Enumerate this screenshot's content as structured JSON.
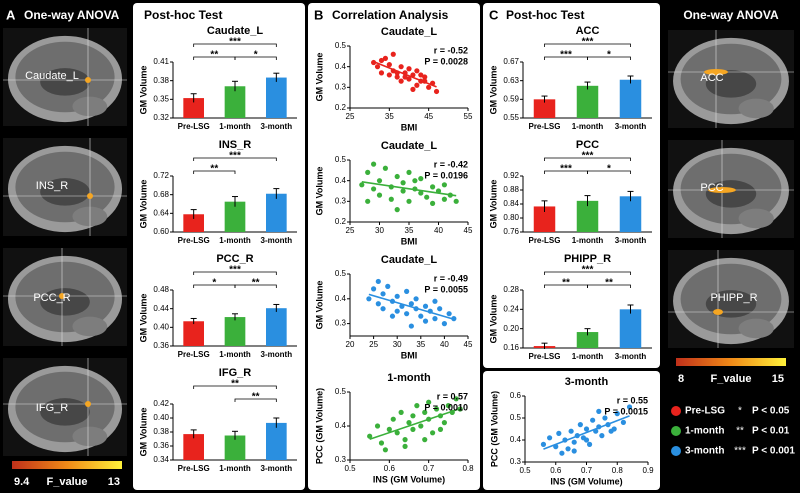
{
  "panel_a": {
    "letter": "A",
    "title": "One-way ANOVA",
    "regions": [
      "Caudate_L",
      "INS_R",
      "PCC_R",
      "IFG_R"
    ],
    "colorbar": {
      "min": 9.4,
      "label": "F_value",
      "max": 13
    }
  },
  "posthoc_left": {
    "title": "Post-hoc Test"
  },
  "panel_b": {
    "letter": "B",
    "title": "Correlation Analysis"
  },
  "panel_c": {
    "letter": "C",
    "title": "Post-hoc Test"
  },
  "panel_right": {
    "title": "One-way ANOVA",
    "regions": [
      "ACC",
      "PCC",
      "PHIPP_R"
    ],
    "colorbar": {
      "min": 8,
      "label": "F_value",
      "max": 15
    }
  },
  "legend": {
    "groups": [
      {
        "name": "Pre-LSG",
        "color": "#e8231d"
      },
      {
        "name": "1-month",
        "color": "#3bb03b"
      },
      {
        "name": "3-month",
        "color": "#2a8fe0"
      }
    ],
    "significance": [
      {
        "stars": "*",
        "text": "P < 0.05"
      },
      {
        "stars": "**",
        "text": "P < 0.01"
      },
      {
        "stars": "***",
        "text": "P < 0.001"
      }
    ]
  },
  "chart_data": [
    {
      "type": "bar",
      "title": "Caudate_L",
      "ylabel": "GM Volume",
      "categories": [
        "Pre-LSG",
        "1-month",
        "3-month"
      ],
      "values": [
        0.352,
        0.371,
        0.385
      ],
      "errors": [
        0.007,
        0.008,
        0.007
      ],
      "colors": [
        "#e8231d",
        "#3bb03b",
        "#2a8fe0"
      ],
      "ylim": [
        0.32,
        0.41
      ],
      "yticks": [
        0.32,
        0.35,
        0.38,
        0.41
      ],
      "significance": [
        {
          "from": "Pre-LSG",
          "to": "1-month",
          "label": "**"
        },
        {
          "from": "1-month",
          "to": "3-month",
          "label": "*"
        },
        {
          "from": "Pre-LSG",
          "to": "3-month",
          "label": "***"
        }
      ]
    },
    {
      "type": "bar",
      "title": "INS_R",
      "ylabel": "GM Volume",
      "categories": [
        "Pre-LSG",
        "1-month",
        "3-month"
      ],
      "values": [
        0.638,
        0.665,
        0.682
      ],
      "errors": [
        0.01,
        0.011,
        0.011
      ],
      "colors": [
        "#e8231d",
        "#3bb03b",
        "#2a8fe0"
      ],
      "ylim": [
        0.6,
        0.72
      ],
      "yticks": [
        {
          "value": 0.6,
          "label": "0.60"
        },
        0.64,
        0.68,
        0.72
      ],
      "significance": [
        {
          "from": "Pre-LSG",
          "to": "1-month",
          "label": "**"
        },
        {
          "from": "Pre-LSG",
          "to": "3-month",
          "label": "***"
        }
      ]
    },
    {
      "type": "bar",
      "title": "PCC_R",
      "ylabel": "GM Volume",
      "categories": [
        "Pre-LSG",
        "1-month",
        "3-month"
      ],
      "values": [
        0.413,
        0.422,
        0.441
      ],
      "errors": [
        0.006,
        0.007,
        0.008
      ],
      "colors": [
        "#e8231d",
        "#3bb03b",
        "#2a8fe0"
      ],
      "ylim": [
        0.36,
        0.48
      ],
      "yticks": [
        0.36,
        {
          "value": 0.4,
          "label": "0.40"
        },
        0.44,
        0.48
      ],
      "significance": [
        {
          "from": "Pre-LSG",
          "to": "1-month",
          "label": "*"
        },
        {
          "from": "1-month",
          "to": "3-month",
          "label": "**"
        },
        {
          "from": "Pre-LSG",
          "to": "3-month",
          "label": "***"
        }
      ]
    },
    {
      "type": "bar",
      "title": "IFG_R",
      "ylabel": "GM Volume",
      "categories": [
        "Pre-LSG",
        "1-month",
        "3-month"
      ],
      "values": [
        0.377,
        0.375,
        0.393
      ],
      "errors": [
        0.006,
        0.006,
        0.007
      ],
      "colors": [
        "#e8231d",
        "#3bb03b",
        "#2a8fe0"
      ],
      "ylim": [
        0.34,
        0.42
      ],
      "yticks": [
        0.34,
        0.36,
        0.38,
        {
          "value": 0.4,
          "label": "0.40"
        },
        0.42
      ],
      "significance": [
        {
          "from": "1-month",
          "to": "3-month",
          "label": "**"
        },
        {
          "from": "Pre-LSG",
          "to": "3-month",
          "label": "**"
        }
      ]
    },
    {
      "type": "scatter",
      "title": "Caudate_L",
      "xlabel": "BMI",
      "ylabel": "GM Volume",
      "color": "#e8231d",
      "x": [
        31,
        32,
        33,
        34,
        35,
        35,
        36,
        37,
        38,
        38,
        39,
        40,
        40,
        41,
        42,
        42,
        43,
        44,
        45,
        46,
        33,
        37,
        41,
        44,
        36,
        39,
        43,
        47
      ],
      "values": [
        0.42,
        0.4,
        0.37,
        0.44,
        0.36,
        0.41,
        0.38,
        0.35,
        0.4,
        0.33,
        0.37,
        0.39,
        0.34,
        0.36,
        0.31,
        0.38,
        0.33,
        0.35,
        0.3,
        0.32,
        0.43,
        0.37,
        0.29,
        0.33,
        0.46,
        0.35,
        0.36,
        0.28
      ],
      "xlim": [
        25,
        55
      ],
      "xticks": [
        25,
        35,
        45,
        55
      ],
      "ylim": [
        0.2,
        0.5
      ],
      "yticks": [
        0.2,
        0.3,
        0.4,
        0.5
      ],
      "annotations": [
        "r = -0.52",
        "P = 0.0028"
      ]
    },
    {
      "type": "scatter",
      "title": "Caudate_L",
      "xlabel": "BMI",
      "ylabel": "GM Volume",
      "color": "#3bb03b",
      "x": [
        27,
        28,
        28,
        29,
        30,
        30,
        31,
        32,
        32,
        33,
        34,
        34,
        35,
        35,
        36,
        37,
        37,
        38,
        39,
        39,
        40,
        41,
        41,
        42,
        43,
        29,
        33,
        36
      ],
      "values": [
        0.38,
        0.3,
        0.44,
        0.36,
        0.4,
        0.33,
        0.46,
        0.37,
        0.31,
        0.42,
        0.35,
        0.39,
        0.3,
        0.44,
        0.36,
        0.34,
        0.41,
        0.32,
        0.37,
        0.29,
        0.35,
        0.31,
        0.38,
        0.33,
        0.3,
        0.48,
        0.26,
        0.4
      ],
      "xlim": [
        25,
        45
      ],
      "xticks": [
        25,
        30,
        35,
        40,
        45
      ],
      "ylim": [
        0.2,
        0.5
      ],
      "yticks": [
        0.2,
        0.3,
        0.4,
        0.5
      ],
      "annotations": [
        "r = -0.42",
        "P = 0.0196"
      ]
    },
    {
      "type": "scatter",
      "title": "Caudate_L",
      "xlabel": "BMI",
      "ylabel": "GM Volume",
      "color": "#2a8fe0",
      "x": [
        24,
        25,
        26,
        27,
        27,
        28,
        29,
        30,
        30,
        31,
        32,
        32,
        33,
        34,
        34,
        35,
        36,
        36,
        37,
        38,
        39,
        40,
        41,
        42,
        26,
        29,
        33,
        38
      ],
      "values": [
        0.4,
        0.44,
        0.38,
        0.42,
        0.36,
        0.45,
        0.39,
        0.41,
        0.35,
        0.37,
        0.43,
        0.34,
        0.38,
        0.36,
        0.4,
        0.33,
        0.37,
        0.31,
        0.35,
        0.32,
        0.36,
        0.3,
        0.34,
        0.32,
        0.47,
        0.33,
        0.29,
        0.39
      ],
      "xlim": [
        20,
        45
      ],
      "xticks": [
        20,
        25,
        30,
        35,
        40,
        45
      ],
      "ylim": [
        0.25,
        0.5
      ],
      "yticks": [
        0.3,
        0.4,
        0.5
      ],
      "annotations": [
        "r = -0.49",
        "P = 0.0055"
      ]
    },
    {
      "type": "scatter",
      "title": "1-month",
      "xlabel": "INS (GM Volume)",
      "ylabel": "PCC (GM Volume)",
      "color": "#3bb03b",
      "x": [
        0.55,
        0.57,
        0.58,
        0.6,
        0.61,
        0.62,
        0.63,
        0.64,
        0.65,
        0.66,
        0.66,
        0.67,
        0.68,
        0.69,
        0.7,
        0.7,
        0.71,
        0.72,
        0.73,
        0.74,
        0.75,
        0.76,
        0.77,
        0.78,
        0.59,
        0.64,
        0.69,
        0.73
      ],
      "values": [
        0.37,
        0.4,
        0.35,
        0.39,
        0.42,
        0.38,
        0.44,
        0.36,
        0.41,
        0.43,
        0.39,
        0.46,
        0.4,
        0.44,
        0.42,
        0.47,
        0.38,
        0.45,
        0.43,
        0.41,
        0.46,
        0.44,
        0.48,
        0.45,
        0.33,
        0.34,
        0.36,
        0.39
      ],
      "xlim": [
        0.5,
        0.8
      ],
      "xticks": [
        0.5,
        0.6,
        0.7,
        0.8
      ],
      "ylim": [
        0.3,
        0.5
      ],
      "yticks": [
        0.3,
        0.4,
        0.5
      ],
      "annotations": [
        "r = 0.57",
        "P = 0.0010"
      ]
    },
    {
      "type": "bar",
      "title": "ACC",
      "ylabel": "GM Volume",
      "categories": [
        "Pre-LSG",
        "1-month",
        "3-month"
      ],
      "values": [
        0.59,
        0.619,
        0.632
      ],
      "errors": [
        0.007,
        0.008,
        0.008
      ],
      "colors": [
        "#e8231d",
        "#3bb03b",
        "#2a8fe0"
      ],
      "ylim": [
        0.55,
        0.67
      ],
      "yticks": [
        0.55,
        0.59,
        0.63,
        0.67
      ],
      "significance": [
        {
          "from": "Pre-LSG",
          "to": "1-month",
          "label": "***"
        },
        {
          "from": "1-month",
          "to": "3-month",
          "label": "*"
        },
        {
          "from": "Pre-LSG",
          "to": "3-month",
          "label": "***"
        }
      ]
    },
    {
      "type": "bar",
      "title": "PCC",
      "ylabel": "GM Volume",
      "categories": [
        "Pre-LSG",
        "1-month",
        "3-month"
      ],
      "values": [
        0.833,
        0.849,
        0.862
      ],
      "errors": [
        0.016,
        0.015,
        0.014
      ],
      "colors": [
        "#e8231d",
        "#3bb03b",
        "#2a8fe0"
      ],
      "ylim": [
        0.76,
        0.92
      ],
      "yticks": [
        0.76,
        {
          "value": 0.8,
          "label": "0.80"
        },
        0.84,
        0.88,
        0.92
      ],
      "significance": [
        {
          "from": "Pre-LSG",
          "to": "1-month",
          "label": "***"
        },
        {
          "from": "1-month",
          "to": "3-month",
          "label": "*"
        },
        {
          "from": "Pre-LSG",
          "to": "3-month",
          "label": "***"
        }
      ]
    },
    {
      "type": "bar",
      "title": "PHIPP_R",
      "ylabel": "GM Volume",
      "categories": [
        "Pre-LSG",
        "1-month",
        "3-month"
      ],
      "values": [
        0.164,
        0.193,
        0.24
      ],
      "errors": [
        0.006,
        0.007,
        0.009
      ],
      "colors": [
        "#e8231d",
        "#3bb03b",
        "#2a8fe0"
      ],
      "ylim": [
        0.16,
        0.28
      ],
      "yticks": [
        0.16,
        {
          "value": 0.2,
          "label": "0.20"
        },
        0.24,
        0.28
      ],
      "significance": [
        {
          "from": "Pre-LSG",
          "to": "1-month",
          "label": "**"
        },
        {
          "from": "1-month",
          "to": "3-month",
          "label": "**"
        },
        {
          "from": "Pre-LSG",
          "to": "3-month",
          "label": "***"
        }
      ]
    },
    {
      "type": "scatter",
      "title": "3-month",
      "xlabel": "INS (GM Volume)",
      "ylabel": "PCC (GM Volume)",
      "color": "#2a8fe0",
      "x": [
        0.56,
        0.58,
        0.6,
        0.61,
        0.63,
        0.64,
        0.65,
        0.66,
        0.67,
        0.68,
        0.69,
        0.7,
        0.71,
        0.72,
        0.73,
        0.74,
        0.75,
        0.76,
        0.77,
        0.78,
        0.8,
        0.82,
        0.84,
        0.62,
        0.66,
        0.7,
        0.74,
        0.79
      ],
      "values": [
        0.38,
        0.41,
        0.37,
        0.43,
        0.4,
        0.36,
        0.44,
        0.39,
        0.42,
        0.47,
        0.41,
        0.45,
        0.38,
        0.49,
        0.44,
        0.46,
        0.42,
        0.5,
        0.47,
        0.44,
        0.52,
        0.48,
        0.55,
        0.34,
        0.35,
        0.4,
        0.53,
        0.45
      ],
      "xlim": [
        0.5,
        0.9
      ],
      "xticks": [
        0.5,
        0.6,
        0.7,
        0.8,
        0.9
      ],
      "ylim": [
        0.3,
        0.6
      ],
      "yticks": [
        0.3,
        0.4,
        0.5,
        0.6
      ],
      "annotations": [
        "r = 0.55",
        "P = 0.0015"
      ]
    }
  ]
}
